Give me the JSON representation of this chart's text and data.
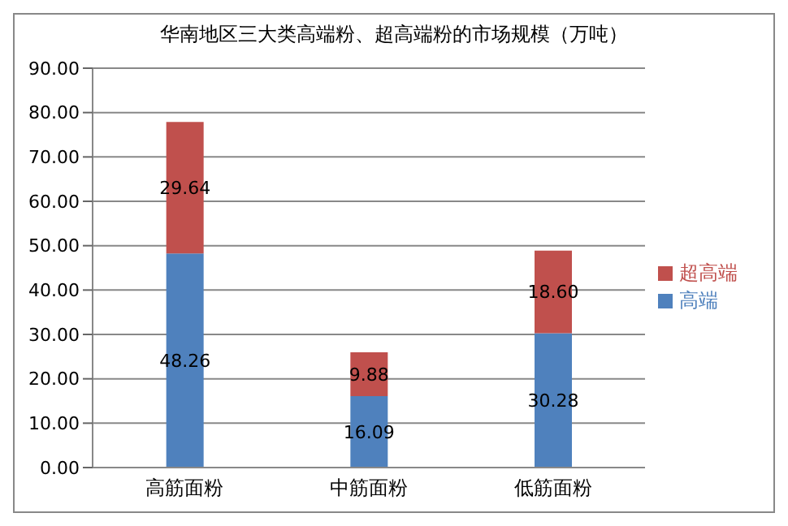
{
  "chart_data": {
    "type": "bar",
    "title": "华南地区三大类高端粉、超高端粉的市场规模（万吨）",
    "categories": [
      "高筋面粉",
      "中筋面粉",
      "低筋面粉"
    ],
    "stacked": true,
    "series": [
      {
        "name": "高端",
        "color": "#4f81bd",
        "values": [
          48.26,
          16.09,
          30.28
        ],
        "value_labels": [
          "48.26",
          "16.09",
          "30.28"
        ]
      },
      {
        "name": "超高端",
        "color": "#c0504d",
        "values": [
          29.64,
          9.88,
          18.6
        ],
        "value_labels": [
          "29.64",
          "9.88",
          "18.60"
        ]
      }
    ],
    "ylim": [
      0,
      90
    ],
    "yticks": [
      {
        "value": 0,
        "label": "0.00"
      },
      {
        "value": 10,
        "label": "10.00"
      },
      {
        "value": 20,
        "label": "20.00"
      },
      {
        "value": 30,
        "label": "30.00"
      },
      {
        "value": 40,
        "label": "40.00"
      },
      {
        "value": 50,
        "label": "50.00"
      },
      {
        "value": 60,
        "label": "60.00"
      },
      {
        "value": 70,
        "label": "70.00"
      },
      {
        "value": 80,
        "label": "80.00"
      },
      {
        "value": 90,
        "label": "90.00"
      }
    ],
    "grid": "y",
    "legend": "right"
  }
}
